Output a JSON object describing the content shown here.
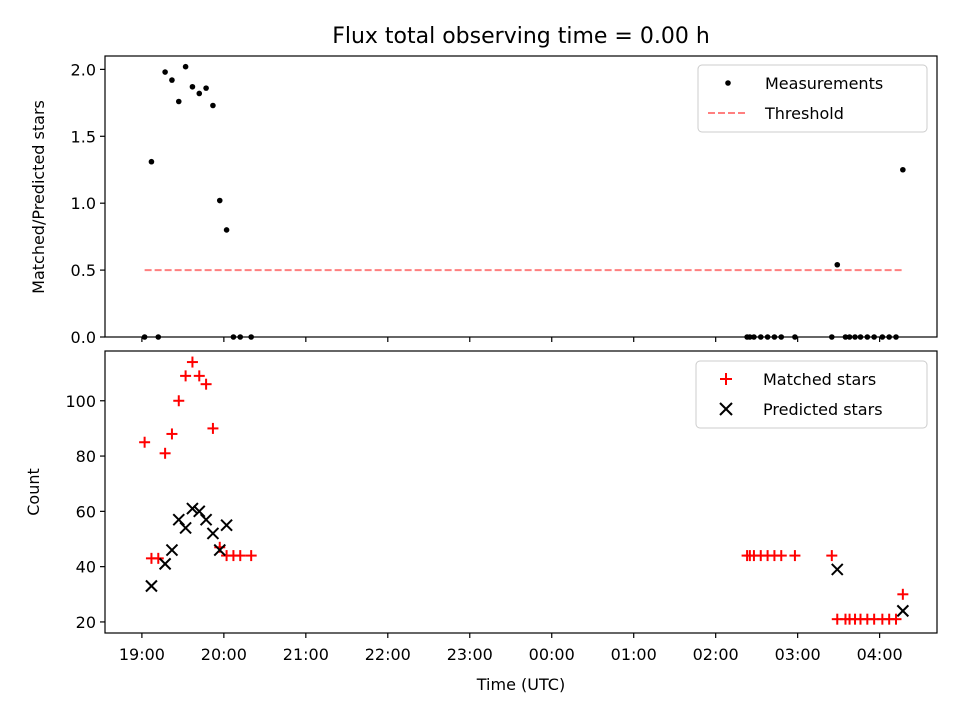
{
  "chart_data": [
    {
      "type": "scatter",
      "title": "Flux total observing time = 0.00 h",
      "xlabel": "",
      "ylabel": "Matched/Predicted stars",
      "ylim": [
        0,
        2.1
      ],
      "yticks": [
        {
          "value": 0.0,
          "label": "0.0"
        },
        {
          "value": 0.5,
          "label": "0.5"
        },
        {
          "value": 1.0,
          "label": "1.0"
        },
        {
          "value": 1.5,
          "label": "1.5"
        },
        {
          "value": 2.0,
          "label": "2.0"
        }
      ],
      "legend": "top-right",
      "series": [
        {
          "name": "Measurements",
          "marker": "dot",
          "color": "#000000",
          "x": [
            "19:02",
            "19:07",
            "19:12",
            "19:17",
            "19:22",
            "19:27",
            "19:32",
            "19:37",
            "19:42",
            "19:47",
            "19:52",
            "19:57",
            "20:02",
            "20:07",
            "20:12",
            "20:20",
            "02:23",
            "02:25",
            "02:28",
            "02:33",
            "02:38",
            "02:43",
            "02:48",
            "02:58",
            "03:25",
            "03:29",
            "03:35",
            "03:38",
            "03:42",
            "03:46",
            "03:51",
            "03:56",
            "04:02",
            "04:07",
            "04:12",
            "04:17"
          ],
          "y": [
            0,
            1.31,
            0,
            1.98,
            1.92,
            1.76,
            2.02,
            1.87,
            1.82,
            1.86,
            1.73,
            1.02,
            0.8,
            0,
            0,
            0,
            0,
            0,
            0,
            0,
            0,
            0,
            0,
            0,
            0,
            0.54,
            0,
            0,
            0,
            0,
            0,
            0,
            0,
            0,
            0,
            1.25
          ]
        },
        {
          "name": "Threshold",
          "marker": "dashed-line",
          "color": "#ff7f7f",
          "x": [
            "19:02",
            "04:17"
          ],
          "y": [
            0.5,
            0.5
          ]
        }
      ]
    },
    {
      "type": "scatter",
      "title": "",
      "xlabel": "Time (UTC)",
      "ylabel": "Count",
      "ylim": [
        16,
        118
      ],
      "yticks": [
        {
          "value": 20,
          "label": "20"
        },
        {
          "value": 40,
          "label": "40"
        },
        {
          "value": 60,
          "label": "60"
        },
        {
          "value": 80,
          "label": "80"
        },
        {
          "value": 100,
          "label": "100"
        }
      ],
      "xticks": [
        {
          "value": "19:00",
          "label": "19:00"
        },
        {
          "value": "20:00",
          "label": "20:00"
        },
        {
          "value": "21:00",
          "label": "21:00"
        },
        {
          "value": "22:00",
          "label": "22:00"
        },
        {
          "value": "23:00",
          "label": "23:00"
        },
        {
          "value": "00:00",
          "label": "00:00"
        },
        {
          "value": "01:00",
          "label": "01:00"
        },
        {
          "value": "02:00",
          "label": "02:00"
        },
        {
          "value": "03:00",
          "label": "03:00"
        },
        {
          "value": "04:00",
          "label": "04:00"
        }
      ],
      "xlim": [
        "18:33",
        "04:42"
      ],
      "legend": "top-right",
      "series": [
        {
          "name": "Matched stars",
          "marker": "plus",
          "color": "#ff0000",
          "x": [
            "19:02",
            "19:07",
            "19:12",
            "19:17",
            "19:22",
            "19:27",
            "19:32",
            "19:37",
            "19:42",
            "19:47",
            "19:52",
            "19:57",
            "20:02",
            "20:07",
            "20:12",
            "20:20",
            "02:23",
            "02:25",
            "02:28",
            "02:33",
            "02:38",
            "02:43",
            "02:48",
            "02:58",
            "03:25",
            "03:29",
            "03:35",
            "03:38",
            "03:42",
            "03:46",
            "03:51",
            "03:56",
            "04:02",
            "04:07",
            "04:12",
            "04:17"
          ],
          "y": [
            85,
            43,
            43,
            81,
            88,
            100,
            109,
            114,
            109,
            106,
            90,
            47,
            44,
            44,
            44,
            44,
            44,
            44,
            44,
            44,
            44,
            44,
            44,
            44,
            44,
            21,
            21,
            21,
            21,
            21,
            21,
            21,
            21,
            21,
            21,
            30
          ]
        },
        {
          "name": "Predicted stars",
          "marker": "x",
          "color": "#000000",
          "x": [
            "19:07",
            "19:17",
            "19:22",
            "19:27",
            "19:32",
            "19:37",
            "19:42",
            "19:47",
            "19:52",
            "19:57",
            "20:02",
            "03:29",
            "04:17"
          ],
          "y": [
            33,
            41,
            46,
            57,
            54,
            61,
            60,
            57,
            52,
            46,
            55,
            39,
            24
          ]
        }
      ]
    }
  ]
}
